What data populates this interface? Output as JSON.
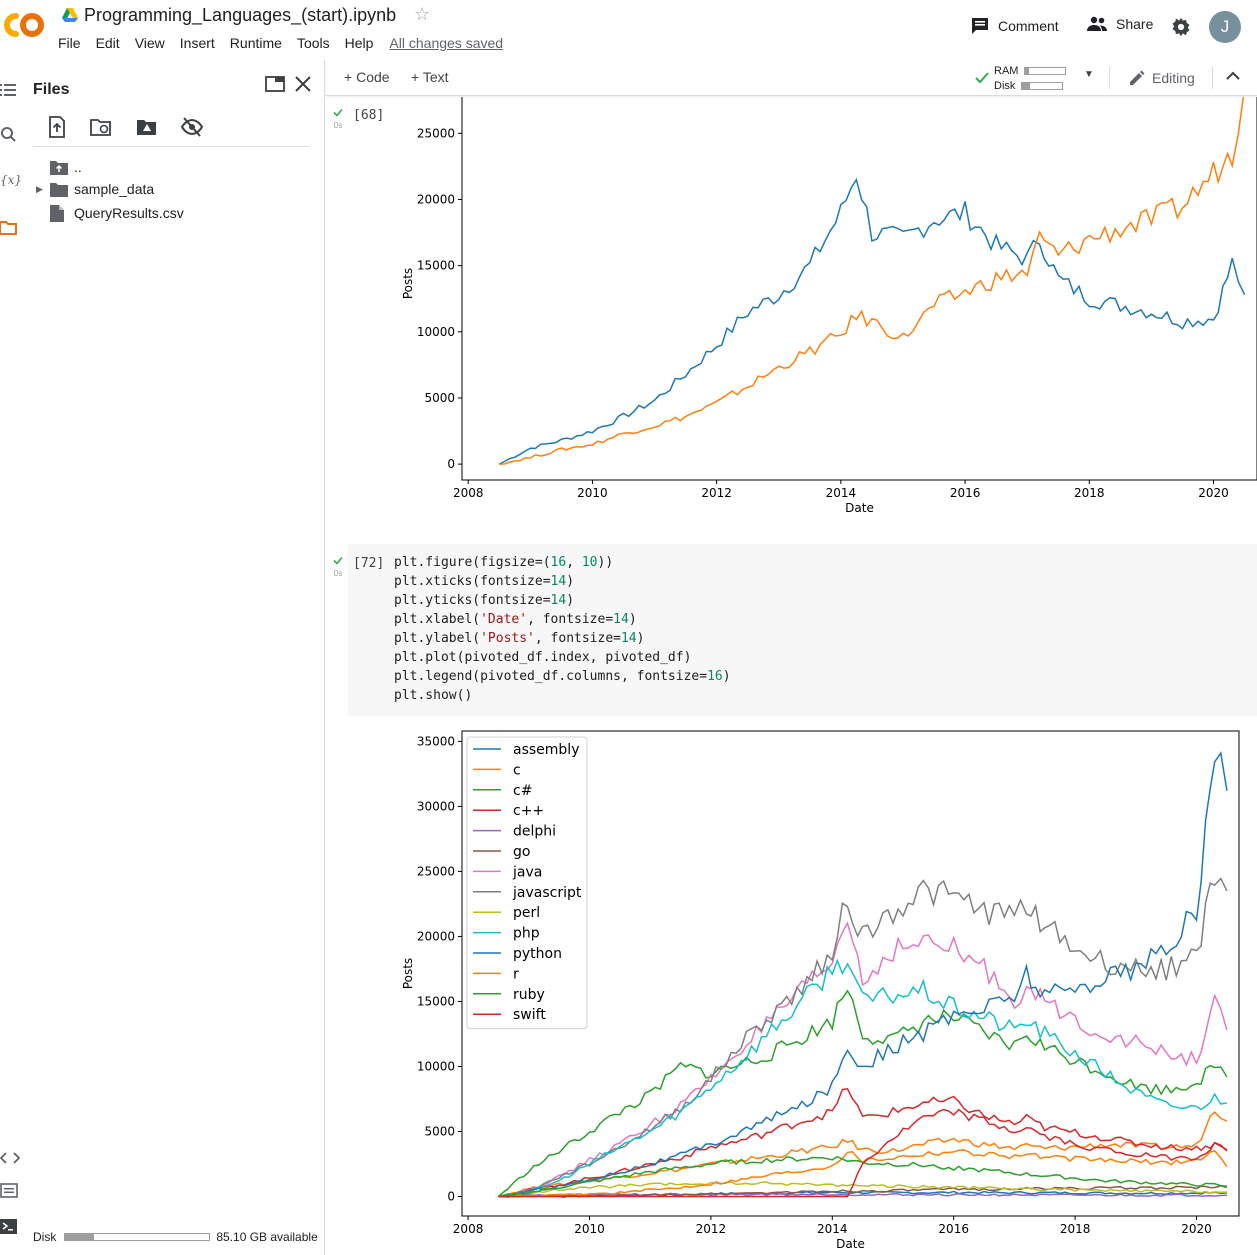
{
  "header": {
    "notebook_title": "Programming_Languages_(start).ipynb",
    "menu": [
      "File",
      "Edit",
      "View",
      "Insert",
      "Runtime",
      "Tools",
      "Help"
    ],
    "save_status": "All changes saved",
    "comment_label": "Comment",
    "share_label": "Share",
    "avatar_letter": "J"
  },
  "files_panel": {
    "title": "Files",
    "items": [
      {
        "label": ".."
      },
      {
        "label": "sample_data"
      },
      {
        "label": "QueryResults.csv"
      }
    ],
    "disk_label": "Disk",
    "disk_available": "85.10 GB available",
    "disk_used_fraction": 0.2
  },
  "toolbar": {
    "code_label": "Code",
    "text_label": "Text",
    "ram_label": "RAM",
    "disk_label": "Disk",
    "ram_fraction": 0.1,
    "disk_fraction": 0.2,
    "editing_label": "Editing"
  },
  "cells": [
    {
      "exec_count": "[68]",
      "exec_time": "0s"
    },
    {
      "exec_count": "[72]",
      "exec_time": "0s"
    }
  ],
  "colors": {
    "assembly": "#1f77b4",
    "c": "#ff7f0e",
    "c#": "#2ca02c",
    "c++": "#d62728",
    "delphi": "#9467bd",
    "go": "#8c564b",
    "java": "#e377c2",
    "javascript": "#7f7f7f",
    "perl": "#bcbd22",
    "php": "#17becf",
    "python": "#1f77b4",
    "r": "#ff7f0e",
    "ruby": "#2ca02c",
    "swift": "#d62728"
  },
  "chart_data": [
    {
      "type": "line",
      "title": "",
      "xlabel": "Date",
      "ylabel": "Posts",
      "xlim": [
        2007.9,
        2020.7
      ],
      "ylim": [
        -1200,
        28500
      ],
      "xticks": [
        2008,
        2010,
        2012,
        2014,
        2016,
        2018,
        2020
      ],
      "yticks": [
        0,
        5000,
        10000,
        15000,
        20000,
        25000
      ],
      "x": [
        2008.5,
        2009.0,
        2009.5,
        2010.0,
        2010.5,
        2011.0,
        2011.5,
        2012.0,
        2012.5,
        2013.0,
        2013.5,
        2014.0,
        2014.25,
        2014.5,
        2015.0,
        2015.5,
        2016.0,
        2016.5,
        2017.0,
        2017.2,
        2017.5,
        2018.0,
        2018.5,
        2019.0,
        2019.5,
        2020.0,
        2020.3,
        2020.5
      ],
      "series": [
        {
          "values": [
            0,
            1200,
            1800,
            2500,
            3600,
            4800,
            6800,
            9000,
            11500,
            12800,
            15000,
            19000,
            22000,
            17500,
            17000,
            18500,
            19000,
            16500,
            15500,
            17000,
            14000,
            12500,
            12000,
            11500,
            10800,
            11000,
            15200,
            12800
          ]
        },
        {
          "values": [
            0,
            500,
            1100,
            1500,
            2300,
            2900,
            3600,
            4600,
            5900,
            7300,
            8500,
            9800,
            11200,
            10800,
            9500,
            12000,
            13000,
            14000,
            14500,
            17000,
            15800,
            17000,
            17800,
            18500,
            19500,
            22000,
            23500,
            28500
          ]
        }
      ]
    },
    {
      "type": "line",
      "title": "",
      "xlabel": "Date",
      "ylabel": "Posts",
      "xlim": [
        2007.9,
        2020.7
      ],
      "ylim": [
        -1500,
        35800
      ],
      "xticks": [
        2008,
        2010,
        2012,
        2014,
        2016,
        2018,
        2020
      ],
      "yticks": [
        0,
        5000,
        10000,
        15000,
        20000,
        25000,
        30000,
        35000
      ],
      "legend_position": "upper-left",
      "x": [
        2008.5,
        2009.0,
        2009.5,
        2010.0,
        2010.5,
        2011.0,
        2011.5,
        2012.0,
        2012.5,
        2013.0,
        2013.5,
        2014.0,
        2014.25,
        2014.5,
        2015.0,
        2015.5,
        2016.0,
        2016.5,
        2017.0,
        2017.2,
        2017.5,
        2018.0,
        2018.5,
        2019.0,
        2019.5,
        2020.0,
        2020.3,
        2020.5
      ],
      "series": [
        {
          "name": "assembly",
          "values": [
            0,
            60,
            80,
            100,
            120,
            140,
            170,
            200,
            230,
            260,
            280,
            300,
            310,
            300,
            290,
            300,
            310,
            300,
            290,
            300,
            290,
            280,
            270,
            260,
            260,
            270,
            290,
            280
          ]
        },
        {
          "name": "c",
          "values": [
            0,
            600,
            900,
            1200,
            1500,
            1800,
            2100,
            2500,
            2800,
            3100,
            3500,
            3800,
            4300,
            3600,
            3500,
            4000,
            4400,
            4000,
            3700,
            3900,
            3700,
            3800,
            4000,
            3900,
            3800,
            3900,
            6800,
            5800
          ]
        },
        {
          "name": "c#",
          "values": [
            0,
            2000,
            3500,
            5000,
            6500,
            7800,
            10000,
            9500,
            10200,
            11000,
            12200,
            13500,
            16200,
            12500,
            12000,
            13500,
            13800,
            12500,
            11500,
            12500,
            11500,
            10500,
            9500,
            8500,
            8200,
            8800,
            10000,
            9200
          ]
        },
        {
          "name": "c++",
          "values": [
            0,
            500,
            900,
            1400,
            1900,
            2500,
            3000,
            3800,
            4300,
            5000,
            5800,
            6500,
            8500,
            6000,
            6500,
            7200,
            7300,
            6200,
            5600,
            6000,
            5300,
            4900,
            4500,
            4100,
            3800,
            3700,
            4000,
            3600
          ]
        },
        {
          "name": "delphi",
          "values": [
            0,
            80,
            100,
            120,
            140,
            150,
            160,
            170,
            170,
            170,
            160,
            160,
            160,
            150,
            140,
            140,
            130,
            130,
            120,
            120,
            110,
            110,
            100,
            100,
            100,
            100,
            100,
            100
          ]
        },
        {
          "name": "go",
          "values": [
            0,
            0,
            0,
            30,
            60,
            100,
            150,
            200,
            250,
            300,
            350,
            400,
            450,
            400,
            450,
            500,
            550,
            550,
            600,
            600,
            620,
            640,
            650,
            660,
            680,
            700,
            720,
            700
          ]
        },
        {
          "name": "java",
          "values": [
            0,
            500,
            1500,
            2800,
            4000,
            5500,
            7000,
            9000,
            11500,
            13500,
            15800,
            18000,
            21500,
            16500,
            19000,
            19500,
            19000,
            17500,
            15200,
            16000,
            15000,
            13500,
            12500,
            11800,
            11000,
            10500,
            15000,
            12800
          ]
        },
        {
          "name": "javascript",
          "values": [
            0,
            400,
            1500,
            2500,
            3800,
            5200,
            6800,
            9000,
            11800,
            14000,
            16000,
            19000,
            22800,
            20000,
            22000,
            23500,
            23000,
            22000,
            21500,
            22500,
            21000,
            19000,
            18000,
            17500,
            17500,
            18500,
            24800,
            23500
          ]
        },
        {
          "name": "perl",
          "values": [
            0,
            300,
            500,
            700,
            800,
            900,
            950,
            1000,
            1000,
            1000,
            950,
            900,
            880,
            850,
            800,
            750,
            700,
            650,
            600,
            580,
            550,
            500,
            450,
            420,
            400,
            380,
            360,
            340
          ]
        },
        {
          "name": "php",
          "values": [
            0,
            400,
            1200,
            2500,
            3800,
            5000,
            6500,
            8500,
            10500,
            12800,
            15000,
            17500,
            18300,
            15000,
            15500,
            15800,
            14500,
            13800,
            12800,
            13500,
            12500,
            11000,
            9500,
            8000,
            7000,
            6800,
            7600,
            7200
          ]
        },
        {
          "name": "python",
          "values": [
            0,
            400,
            800,
            1300,
            1900,
            2500,
            3200,
            4000,
            5000,
            6000,
            7000,
            8500,
            11500,
            10000,
            11500,
            12500,
            14000,
            14500,
            15500,
            17200,
            15500,
            16000,
            17000,
            17500,
            19000,
            22000,
            34500,
            31200
          ]
        },
        {
          "name": "r",
          "values": [
            0,
            50,
            100,
            200,
            300,
            500,
            700,
            1000,
            1300,
            1700,
            2000,
            2400,
            3500,
            2800,
            3000,
            3300,
            3500,
            3300,
            3100,
            3300,
            3000,
            2900,
            2800,
            2700,
            2600,
            2800,
            3500,
            2300
          ]
        },
        {
          "name": "ruby",
          "values": [
            0,
            300,
            700,
            1100,
            1500,
            1900,
            2200,
            2500,
            2700,
            2800,
            2900,
            3000,
            2800,
            2600,
            2500,
            2400,
            2200,
            2000,
            1800,
            1700,
            1600,
            1400,
            1200,
            1100,
            1000,
            900,
            900,
            800
          ]
        },
        {
          "name": "swift",
          "values": [
            0,
            0,
            0,
            0,
            0,
            0,
            0,
            0,
            0,
            0,
            0,
            0,
            0,
            2500,
            4500,
            6000,
            6500,
            5800,
            5000,
            5300,
            4600,
            4000,
            3600,
            3200,
            3000,
            3000,
            4000,
            3500
          ]
        }
      ]
    }
  ]
}
